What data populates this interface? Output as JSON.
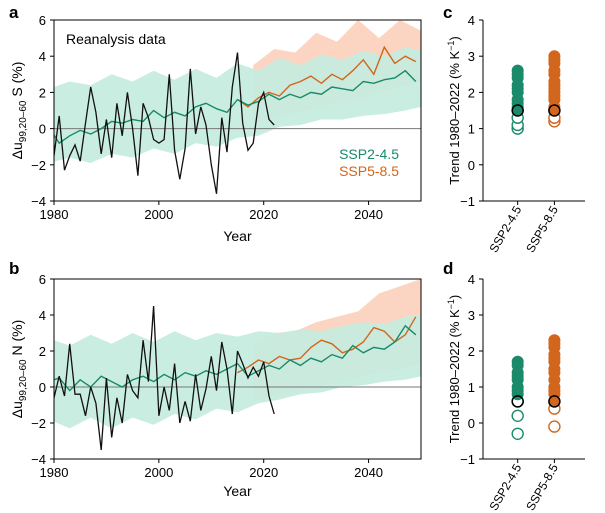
{
  "colors": {
    "ssp245": "#1a8a6a",
    "ssp585": "#d2661c",
    "band245": "#c6ebe0",
    "band585": "#fbd5c2",
    "reanalysis": "#111111",
    "zero": "#777777"
  },
  "chart_data": [
    {
      "panel": "a",
      "type": "line",
      "annotation": "Reanalysis data",
      "xlabel": "Year",
      "ylabel_main": "Δu",
      "ylabel_sub": "99,20–60",
      "ylabel_tail": " S (%)",
      "xlim": [
        1980,
        2050
      ],
      "ylim": [
        -4,
        6
      ],
      "xticks": [
        1980,
        2000,
        2020,
        2040
      ],
      "yticks": [
        -4,
        -2,
        0,
        2,
        4,
        6
      ],
      "legend": [
        {
          "label": "SSP2-4.5",
          "color_key": "ssp245"
        },
        {
          "label": "SSP5-8.5",
          "color_key": "ssp585"
        }
      ],
      "reanalysis": {
        "x": [
          1979,
          1980,
          1981,
          1982,
          1983,
          1984,
          1985,
          1986,
          1987,
          1988,
          1989,
          1990,
          1991,
          1992,
          1993,
          1994,
          1995,
          1996,
          1997,
          1998,
          1999,
          2000,
          2001,
          2002,
          2003,
          2004,
          2005,
          2006,
          2007,
          2008,
          2009,
          2010,
          2011,
          2012,
          2013,
          2014,
          2015,
          2016,
          2017,
          2018,
          2019,
          2020,
          2021,
          2022
        ],
        "y": [
          0.7,
          -1.5,
          0.7,
          -2.3,
          -1.5,
          -0.9,
          -1.8,
          0.3,
          2.3,
          0.9,
          -1.4,
          0.5,
          -1.6,
          1.4,
          -0.4,
          2.0,
          0.0,
          -2.6,
          1.4,
          0.6,
          -0.6,
          -0.8,
          -0.6,
          3.0,
          -1.2,
          -2.8,
          -1.1,
          3.3,
          -0.3,
          1.2,
          0.2,
          -2.0,
          -3.6,
          0.6,
          -1.3,
          2.3,
          4.2,
          0.3,
          -1.2,
          -0.8,
          1.4,
          2.0,
          0.5,
          0.2
        ]
      },
      "band245": {
        "x": [
          1979,
          1983,
          1987,
          1991,
          1995,
          1999,
          2003,
          2007,
          2011,
          2015,
          2019,
          2023,
          2027,
          2031,
          2035,
          2039,
          2043,
          2047,
          2050
        ],
        "upper": [
          2.2,
          2.6,
          2.4,
          3.0,
          2.6,
          3.2,
          2.7,
          3.3,
          2.8,
          3.6,
          3.2,
          3.9,
          3.5,
          4.1,
          3.8,
          4.3,
          4.0,
          4.5,
          4.3
        ],
        "lower": [
          -1.9,
          -1.6,
          -1.9,
          -1.4,
          -1.6,
          -1.1,
          -1.4,
          -0.8,
          -1.0,
          -0.5,
          -0.4,
          0.1,
          0.2,
          0.5,
          0.5,
          0.7,
          0.8,
          1.0,
          1.2
        ]
      },
      "band585": {
        "x": [
          2018,
          2022,
          2026,
          2030,
          2034,
          2038,
          2042,
          2046,
          2050
        ],
        "upper": [
          3.5,
          4.4,
          4.2,
          5.3,
          4.8,
          6.0,
          5.0,
          6.0,
          5.4
        ],
        "lower": [
          0.3,
          0.6,
          0.9,
          1.1,
          1.4,
          1.6,
          2.0,
          2.3,
          2.6
        ]
      },
      "ssp245_mean": {
        "x": [
          1979,
          1981,
          1983,
          1985,
          1987,
          1989,
          1991,
          1993,
          1995,
          1997,
          1999,
          2001,
          2003,
          2005,
          2007,
          2009,
          2011,
          2013,
          2015,
          2017,
          2019,
          2021,
          2023,
          2025,
          2027,
          2029,
          2031,
          2033,
          2035,
          2037,
          2039,
          2041,
          2043,
          2045,
          2047,
          2049
        ],
        "y": [
          0.1,
          -0.8,
          -0.4,
          -0.1,
          -0.3,
          0.0,
          0.4,
          0.3,
          0.5,
          0.4,
          1.0,
          0.6,
          0.9,
          0.7,
          1.2,
          1.4,
          1.1,
          0.9,
          1.6,
          1.3,
          1.5,
          1.9,
          1.6,
          1.9,
          1.7,
          2.0,
          1.9,
          2.3,
          2.2,
          2.1,
          2.6,
          2.5,
          2.7,
          2.8,
          3.2,
          2.6
        ]
      },
      "ssp585_mean": {
        "x": [
          2015,
          2017,
          2019,
          2021,
          2023,
          2025,
          2027,
          2029,
          2031,
          2033,
          2035,
          2037,
          2039,
          2041,
          2043,
          2045,
          2047,
          2049
        ],
        "y": [
          1.6,
          1.2,
          1.7,
          2.0,
          1.8,
          2.4,
          2.6,
          2.9,
          2.5,
          3.0,
          2.7,
          3.2,
          3.8,
          3.0,
          4.5,
          3.6,
          4.0,
          3.7
        ]
      }
    },
    {
      "panel": "b",
      "type": "line",
      "xlabel": "Year",
      "ylabel_main": "Δu",
      "ylabel_sub": "99,20–60",
      "ylabel_tail": " N (%)",
      "xlim": [
        1980,
        2050
      ],
      "ylim": [
        -4,
        6
      ],
      "xticks": [
        1980,
        2000,
        2020,
        2040
      ],
      "yticks": [
        -4,
        -2,
        0,
        2,
        4,
        6
      ],
      "reanalysis": {
        "x": [
          1979,
          1980,
          1981,
          1982,
          1983,
          1984,
          1985,
          1986,
          1987,
          1988,
          1989,
          1990,
          1991,
          1992,
          1993,
          1994,
          1995,
          1996,
          1997,
          1998,
          1999,
          2000,
          2001,
          2002,
          2003,
          2004,
          2005,
          2006,
          2007,
          2008,
          2009,
          2010,
          2011,
          2012,
          2013,
          2014,
          2015,
          2016,
          2017,
          2018,
          2019,
          2020,
          2021,
          2022
        ],
        "y": [
          -0.1,
          -0.6,
          0.6,
          -0.5,
          2.4,
          -0.4,
          -0.4,
          -1.6,
          0.0,
          -0.9,
          -3.5,
          0.5,
          -2.8,
          -0.6,
          -2.0,
          0.7,
          -0.2,
          -0.6,
          2.6,
          0.3,
          4.5,
          -1.6,
          0.0,
          -1.3,
          1.3,
          -2.0,
          -0.8,
          -1.9,
          0.7,
          -1.3,
          -0.1,
          1.7,
          -0.2,
          2.5,
          1.0,
          -1.5,
          2.0,
          1.3,
          0.5,
          1.1,
          0.6,
          1.4,
          -0.5,
          -1.5
        ]
      },
      "band245": {
        "x": [
          1979,
          1983,
          1987,
          1991,
          1995,
          1999,
          2003,
          2007,
          2011,
          2015,
          2019,
          2023,
          2027,
          2031,
          2035,
          2039,
          2043,
          2047,
          2050
        ],
        "upper": [
          2.7,
          2.3,
          2.9,
          2.4,
          3.0,
          2.5,
          3.1,
          2.6,
          3.0,
          2.8,
          3.1,
          3.0,
          3.2,
          3.1,
          3.4,
          3.6,
          3.5,
          3.9,
          4.0
        ],
        "lower": [
          -1.8,
          -2.3,
          -1.7,
          -2.3,
          -1.7,
          -2.1,
          -1.5,
          -1.8,
          -1.2,
          -1.4,
          -0.9,
          -0.7,
          -0.4,
          -0.3,
          0.0,
          0.1,
          0.3,
          0.4,
          0.6
        ]
      },
      "band585": {
        "x": [
          2018,
          2022,
          2026,
          2030,
          2034,
          2038,
          2042,
          2046,
          2050
        ],
        "upper": [
          2.4,
          3.0,
          3.1,
          3.6,
          3.9,
          4.2,
          5.2,
          5.6,
          6.0
        ],
        "lower": [
          -0.8,
          -0.5,
          -0.3,
          0.0,
          0.3,
          0.5,
          0.8,
          1.0,
          1.3
        ]
      },
      "ssp245_mean": {
        "x": [
          1979,
          1981,
          1983,
          1985,
          1987,
          1989,
          1991,
          1993,
          1995,
          1997,
          1999,
          2001,
          2003,
          2005,
          2007,
          2009,
          2011,
          2013,
          2015,
          2017,
          2019,
          2021,
          2023,
          2025,
          2027,
          2029,
          2031,
          2033,
          2035,
          2037,
          2039,
          2041,
          2043,
          2045,
          2047,
          2049
        ],
        "y": [
          0.3,
          0.5,
          -0.2,
          0.4,
          0.0,
          0.6,
          0.3,
          0.0,
          0.4,
          0.6,
          0.3,
          0.7,
          0.4,
          0.8,
          0.6,
          0.9,
          0.7,
          1.0,
          1.3,
          0.6,
          0.9,
          1.2,
          1.0,
          1.5,
          1.2,
          1.6,
          1.4,
          1.8,
          1.6,
          2.3,
          1.9,
          2.2,
          2.1,
          2.5,
          3.4,
          2.9
        ]
      },
      "ssp585_mean": {
        "x": [
          2015,
          2017,
          2019,
          2021,
          2023,
          2025,
          2027,
          2029,
          2031,
          2033,
          2035,
          2037,
          2039,
          2041,
          2043,
          2045,
          2047,
          2049
        ],
        "y": [
          0.8,
          1.1,
          1.5,
          1.3,
          1.7,
          1.5,
          1.6,
          2.2,
          2.6,
          2.4,
          1.9,
          2.1,
          2.5,
          3.3,
          3.1,
          2.5,
          2.9,
          3.9
        ]
      }
    },
    {
      "panel": "c",
      "type": "scatter",
      "ylabel": "Trend 1980–2022 (% K",
      "ylabel_sup": "−1",
      "ylabel_end": ")",
      "ylim": [
        -1,
        4
      ],
      "yticks": [
        -1,
        0,
        1,
        2,
        3,
        4
      ],
      "categories": [
        "SSP2-4.5",
        "SSP5-8.5"
      ],
      "filled": [
        [
          1.5,
          1.6,
          1.7,
          1.8,
          2.0,
          2.1,
          2.2,
          2.4,
          2.5,
          2.6
        ],
        [
          1.5,
          1.6,
          1.8,
          1.9,
          2.0,
          2.1,
          2.2,
          2.3,
          2.5,
          2.6,
          2.8,
          2.9,
          3.0
        ]
      ],
      "open": [
        [
          1.0,
          1.1,
          1.3
        ],
        [
          1.2,
          1.3
        ]
      ],
      "reanalysis": [
        1.5,
        1.5
      ]
    },
    {
      "panel": "d",
      "type": "scatter",
      "ylabel": "Trend 1980–2022 (% K",
      "ylabel_sup": "−1",
      "ylabel_end": ")",
      "ylim": [
        -1,
        4
      ],
      "yticks": [
        -1,
        0,
        1,
        2,
        3,
        4
      ],
      "categories": [
        "SSP2-4.5",
        "SSP5-8.5"
      ],
      "filled": [
        [
          0.8,
          0.9,
          1.0,
          1.2,
          1.3,
          1.4,
          1.6,
          1.7
        ],
        [
          0.6,
          0.8,
          0.9,
          1.0,
          1.2,
          1.4,
          1.5,
          1.7,
          1.8,
          1.9,
          2.1,
          2.2,
          2.3
        ]
      ],
      "open": [
        [
          -0.3,
          0.2,
          0.6
        ],
        [
          -0.1,
          0.4
        ]
      ],
      "reanalysis": [
        0.6,
        0.6
      ]
    }
  ]
}
